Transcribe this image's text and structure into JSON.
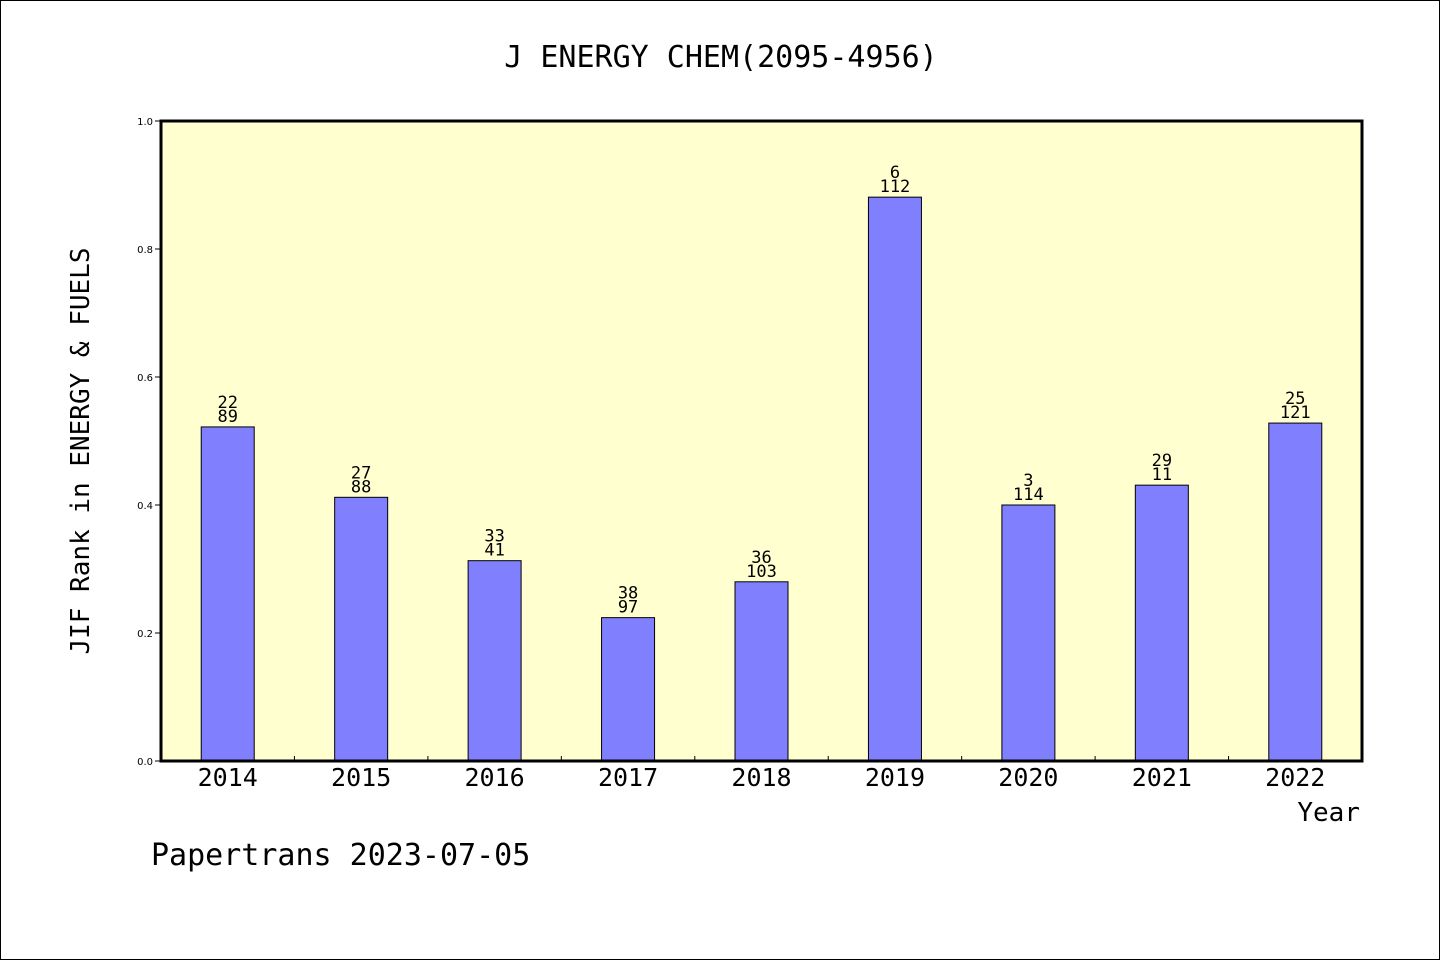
{
  "chart_data": {
    "type": "bar",
    "title": "J ENERGY CHEM(2095-4956)",
    "xlabel": "Year",
    "ylabel": "JIF Rank in ENERGY & FUELS",
    "categories": [
      "2014",
      "2015",
      "2016",
      "2017",
      "2018",
      "2019",
      "2020",
      "2021",
      "2022"
    ],
    "values": [
      0.522,
      0.412,
      0.313,
      0.224,
      0.28,
      0.881,
      0.4,
      0.431,
      0.528
    ],
    "labels_top": [
      "22",
      "27",
      "33",
      "38",
      "36",
      "6",
      "3",
      "29",
      "25"
    ],
    "labels_bottom": [
      "89",
      "88",
      "41",
      "97",
      "103",
      "112",
      "114",
      "11",
      "121"
    ],
    "ylim": [
      0.0,
      1.0
    ],
    "yticks": [
      "0.0",
      "0.2",
      "0.4",
      "0.6",
      "0.8",
      "1.0"
    ],
    "grid": false,
    "legend": "none",
    "colors": {
      "bar": "#8080ff",
      "plot_background": "#ffffd0",
      "axes": "#000000"
    }
  },
  "footer": {
    "text": "Papertrans 2023-07-05"
  }
}
